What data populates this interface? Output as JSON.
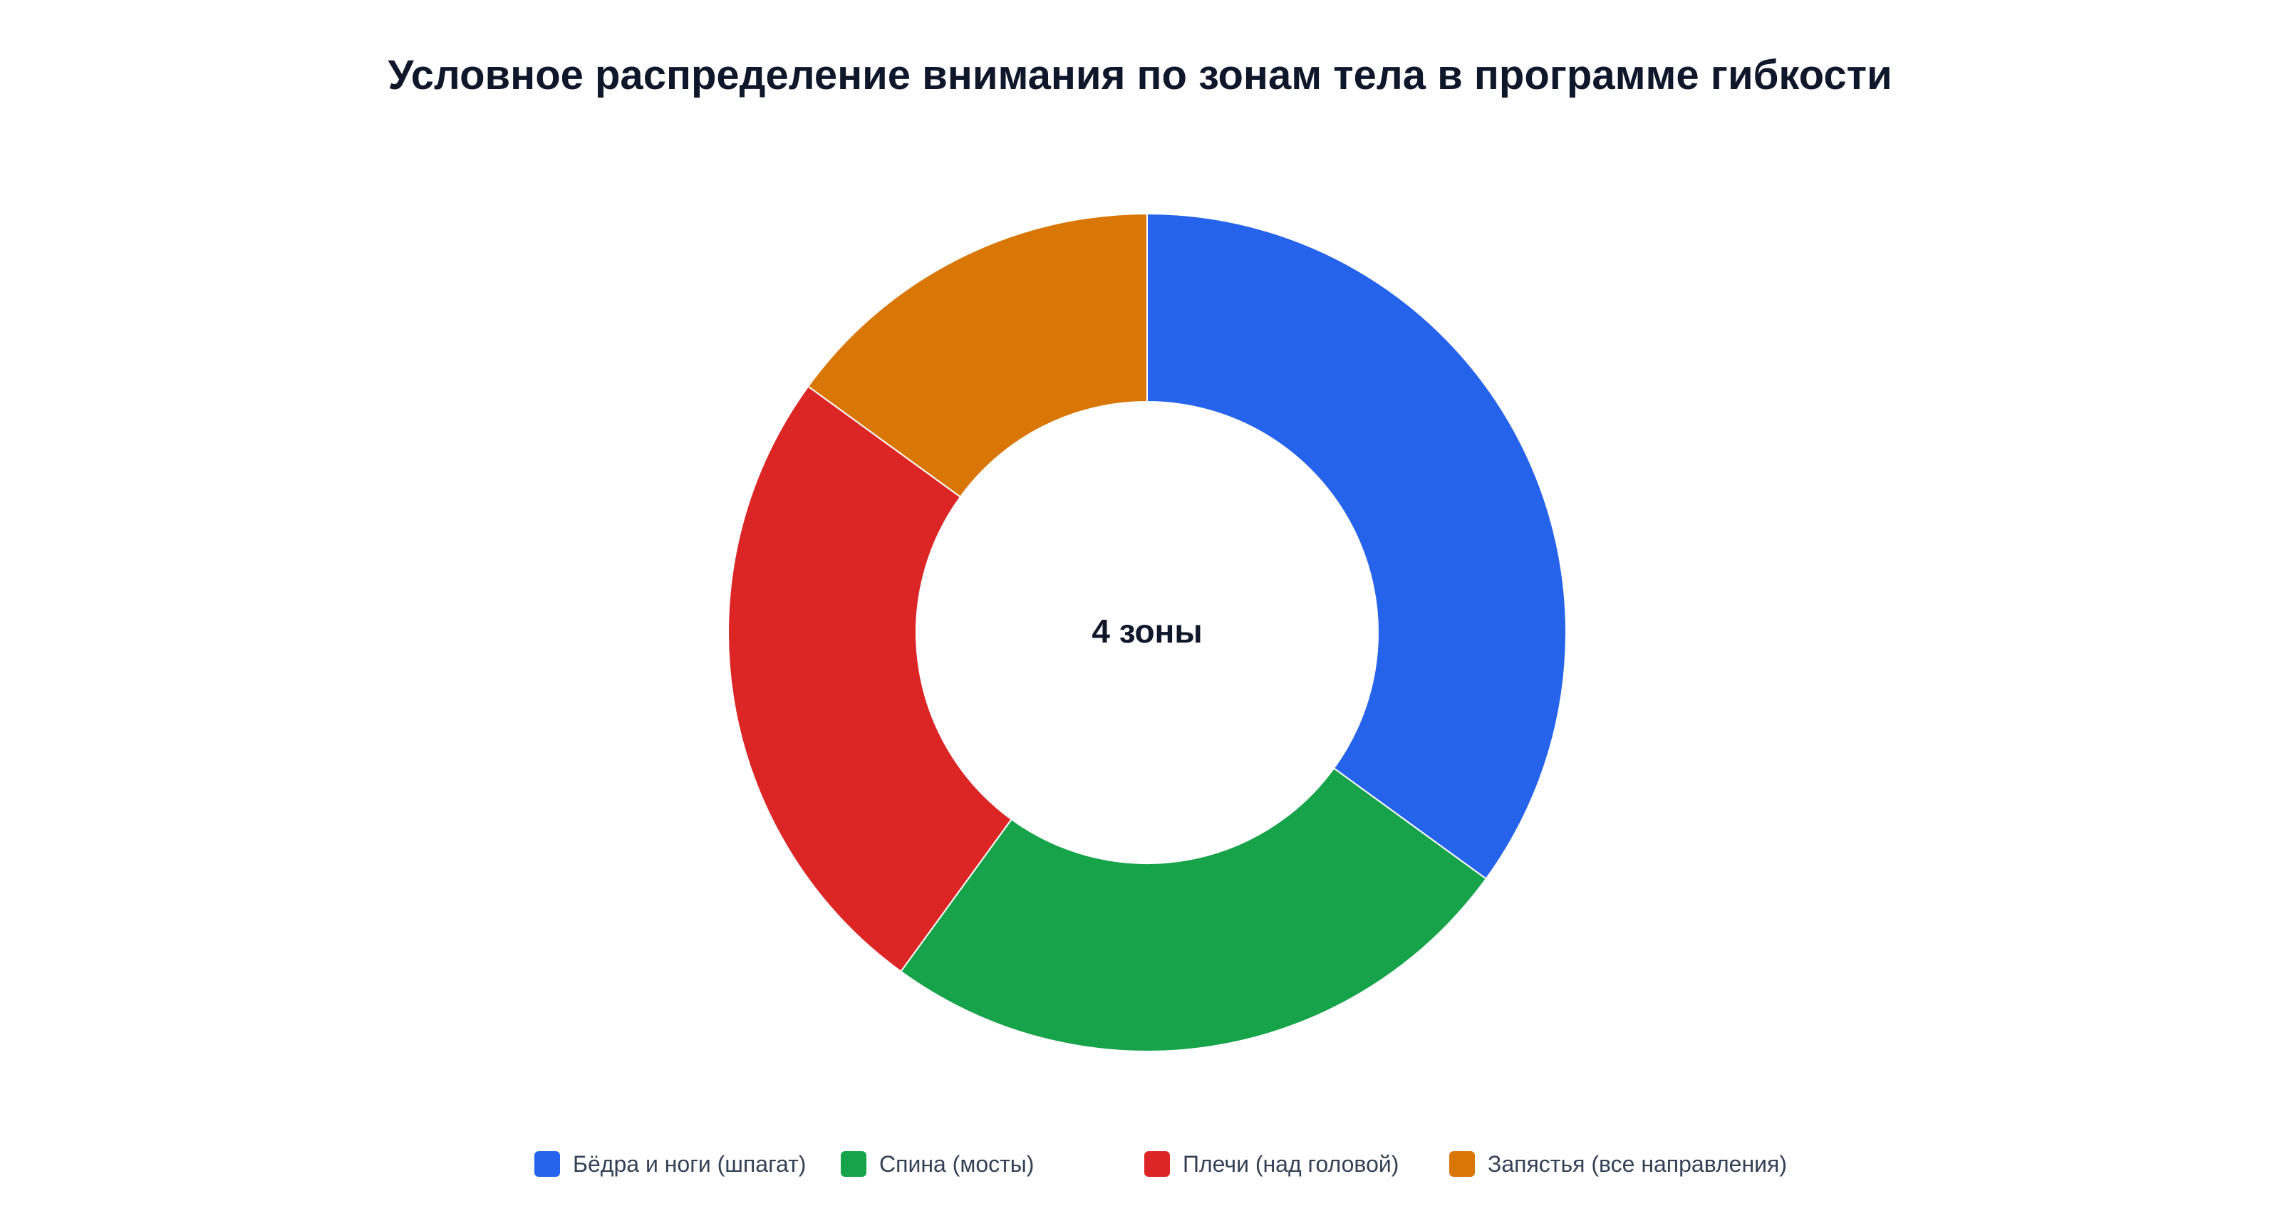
{
  "chart_data": {
    "type": "pie",
    "variant": "donut",
    "title": "Условное распределение внимания по зонам тела в программе гибкости",
    "center_label": "4 зоны",
    "legend_position": "bottom",
    "categories": [
      "Бёдра и ноги (шпагат)",
      "Спина (мосты)",
      "Плечи (над головой)",
      "Запястья (все направления)"
    ],
    "values": [
      35,
      25,
      25,
      15
    ],
    "colors": [
      "#2563eb",
      "#16a34a",
      "#dc2626",
      "#d97706"
    ]
  }
}
